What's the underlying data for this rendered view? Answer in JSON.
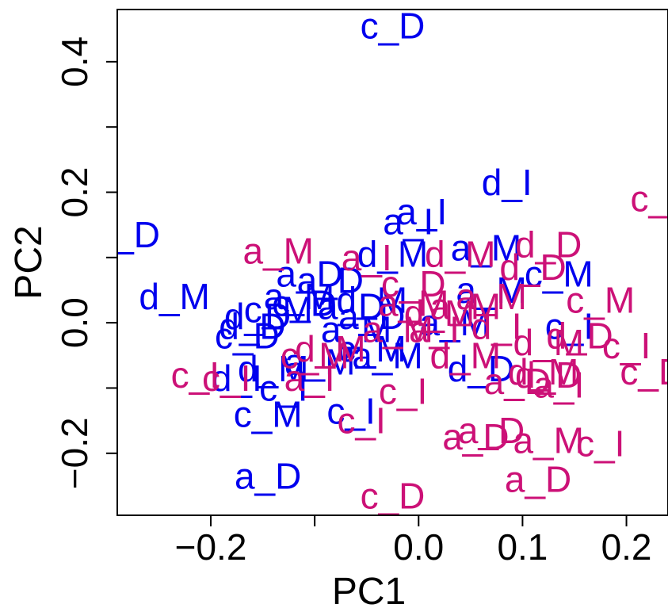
{
  "chart_data": {
    "type": "scatter",
    "xlabel": "PC1",
    "ylabel": "PC2",
    "xlim": [
      -0.29,
      0.24
    ],
    "ylim": [
      -0.295,
      0.48
    ],
    "x_ticks": [
      -0.2,
      -0.1,
      0.0,
      0.1,
      0.2
    ],
    "x_tick_labels": [
      "−0.2",
      "",
      "0.0",
      "0.1",
      "0.2"
    ],
    "y_ticks": [
      -0.2,
      -0.1,
      0.0,
      0.1,
      0.2,
      0.3,
      0.4
    ],
    "y_tick_labels": [
      "−0.2",
      "",
      "0.0",
      "",
      "0.2",
      "",
      "0.4"
    ],
    "grid": false,
    "colors": {
      "blue": "#0000ee",
      "magenta": "#cc1177"
    },
    "series": [
      {
        "color": "blue",
        "points": [
          {
            "label": "c_D",
            "x": -0.025,
            "y": 0.455
          },
          {
            "label": "d_I",
            "x": 0.085,
            "y": 0.215
          },
          {
            "label": "a_I",
            "x": 0.003,
            "y": 0.17
          },
          {
            "label": "a_I",
            "x": -0.01,
            "y": 0.155
          },
          {
            "label": "c_D",
            "x": -0.28,
            "y": 0.135
          },
          {
            "label": "d_M",
            "x": -0.025,
            "y": 0.105
          },
          {
            "label": "a_M",
            "x": 0.065,
            "y": 0.115
          },
          {
            "label": "c_M",
            "x": 0.135,
            "y": 0.075
          },
          {
            "label": "a_D",
            "x": -0.105,
            "y": 0.075
          },
          {
            "label": "a_D",
            "x": -0.085,
            "y": 0.065
          },
          {
            "label": "d_M",
            "x": -0.235,
            "y": 0.04
          },
          {
            "label": "a_M",
            "x": 0.07,
            "y": 0.05
          },
          {
            "label": "a_M",
            "x": -0.115,
            "y": 0.04
          },
          {
            "label": "c_D",
            "x": -0.11,
            "y": 0.03
          },
          {
            "label": "a_D",
            "x": -0.065,
            "y": 0.025
          },
          {
            "label": "d_M",
            "x": -0.045,
            "y": 0.035
          },
          {
            "label": "c_M",
            "x": -0.135,
            "y": 0.02
          },
          {
            "label": "d_D",
            "x": -0.155,
            "y": 0.01
          },
          {
            "label": "a_D",
            "x": -0.045,
            "y": 0.01
          },
          {
            "label": "d_D",
            "x": -0.16,
            "y": -0.005
          },
          {
            "label": "c_D",
            "x": -0.165,
            "y": -0.02
          },
          {
            "label": "a_M",
            "x": -0.06,
            "y": -0.01
          },
          {
            "label": "c_I",
            "x": 0.145,
            "y": -0.005
          },
          {
            "label": "a_M",
            "x": 0.035,
            "y": 0.0
          },
          {
            "label": "c_M",
            "x": -0.045,
            "y": -0.04
          },
          {
            "label": "a_M",
            "x": -0.095,
            "y": -0.06
          },
          {
            "label": "a_M",
            "x": -0.03,
            "y": -0.05
          },
          {
            "label": "d_M",
            "x": -0.14,
            "y": -0.07
          },
          {
            "label": "d_D",
            "x": 0.06,
            "y": -0.07
          },
          {
            "label": "d_I",
            "x": -0.175,
            "y": -0.085
          },
          {
            "label": "c_I",
            "x": -0.13,
            "y": -0.1
          },
          {
            "label": "c_M",
            "x": -0.145,
            "y": -0.14
          },
          {
            "label": "c_I",
            "x": -0.065,
            "y": -0.135
          },
          {
            "label": "a_D",
            "x": -0.145,
            "y": -0.235
          }
        ]
      },
      {
        "color": "magenta",
        "points": [
          {
            "label": "c_D",
            "x": 0.235,
            "y": 0.19
          },
          {
            "label": "d_D",
            "x": 0.125,
            "y": 0.12
          },
          {
            "label": "a_M",
            "x": -0.135,
            "y": 0.11
          },
          {
            "label": "a_I",
            "x": -0.05,
            "y": 0.1
          },
          {
            "label": "d_M",
            "x": 0.04,
            "y": 0.105
          },
          {
            "label": "d_D",
            "x": 0.11,
            "y": 0.085
          },
          {
            "label": "c_D",
            "x": -0.005,
            "y": 0.06
          },
          {
            "label": "a_M",
            "x": 0.07,
            "y": 0.04
          },
          {
            "label": "c_M",
            "x": 0.175,
            "y": 0.035
          },
          {
            "label": "a_M",
            "x": 0.045,
            "y": 0.025
          },
          {
            "label": "a_M",
            "x": -0.005,
            "y": 0.03
          },
          {
            "label": "d_M",
            "x": 0.02,
            "y": 0.015
          },
          {
            "label": "a_I",
            "x": 0.015,
            "y": -0.01
          },
          {
            "label": "d_I",
            "x": 0.075,
            "y": -0.005
          },
          {
            "label": "a_M",
            "x": -0.02,
            "y": -0.01
          },
          {
            "label": "d_D",
            "x": 0.155,
            "y": -0.02
          },
          {
            "label": "d_M",
            "x": 0.125,
            "y": -0.03
          },
          {
            "label": "c_I",
            "x": 0.2,
            "y": -0.035
          },
          {
            "label": "d_M",
            "x": -0.085,
            "y": -0.04
          },
          {
            "label": "c_M",
            "x": -0.1,
            "y": -0.05
          },
          {
            "label": "d_M",
            "x": 0.045,
            "y": -0.05
          },
          {
            "label": "c_D",
            "x": 0.225,
            "y": -0.075
          },
          {
            "label": "c_I",
            "x": -0.215,
            "y": -0.08
          },
          {
            "label": "c_I",
            "x": -0.185,
            "y": -0.085
          },
          {
            "label": "d_M",
            "x": 0.12,
            "y": -0.075
          },
          {
            "label": "d_D",
            "x": 0.125,
            "y": -0.08
          },
          {
            "label": "a_D",
            "x": 0.095,
            "y": -0.09
          },
          {
            "label": "a_I",
            "x": 0.135,
            "y": -0.095
          },
          {
            "label": "a_I",
            "x": -0.105,
            "y": -0.085
          },
          {
            "label": "c_I",
            "x": -0.015,
            "y": -0.105
          },
          {
            "label": "c_I",
            "x": -0.055,
            "y": -0.15
          },
          {
            "label": "a_D",
            "x": 0.07,
            "y": -0.165
          },
          {
            "label": "a_D",
            "x": 0.055,
            "y": -0.175
          },
          {
            "label": "a_M",
            "x": 0.125,
            "y": -0.18
          },
          {
            "label": "c_I",
            "x": 0.175,
            "y": -0.185
          },
          {
            "label": "a_D",
            "x": 0.115,
            "y": -0.24
          },
          {
            "label": "c_D",
            "x": -0.025,
            "y": -0.265
          }
        ]
      }
    ]
  }
}
